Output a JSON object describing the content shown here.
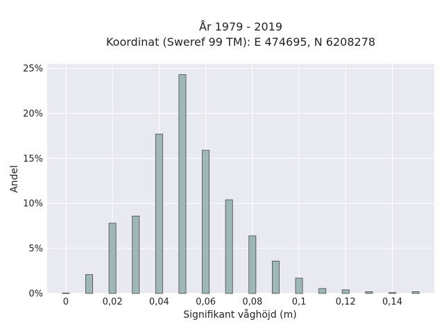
{
  "chart_data": {
    "type": "bar",
    "title": "År 1979 - 2019",
    "subtitle": "Koordinat (Sweref 99 TM): E 474695, N 6208278",
    "xlabel": "Signifikant våghöjd (m)",
    "ylabel": "Andel",
    "x": [
      0,
      0.01,
      0.02,
      0.03,
      0.04,
      0.05,
      0.06,
      0.07,
      0.08,
      0.09,
      0.1,
      0.11,
      0.12,
      0.13,
      0.14,
      0.15
    ],
    "values": [
      0.05,
      2.1,
      7.8,
      8.6,
      17.7,
      24.3,
      15.9,
      10.4,
      6.4,
      3.6,
      1.7,
      0.55,
      0.4,
      0.2,
      0.1,
      0.2
    ],
    "xlim": [
      -0.008,
      0.158
    ],
    "ylim": [
      0,
      25.5
    ],
    "x_ticks": [
      0,
      0.02,
      0.04,
      0.06,
      0.08,
      0.1,
      0.12,
      0.14
    ],
    "x_tick_labels": [
      "0",
      "0,02",
      "0,04",
      "0,06",
      "0,08",
      "0,1",
      "0,12",
      "0,14"
    ],
    "y_ticks": [
      0,
      5,
      10,
      15,
      20,
      25
    ],
    "y_tick_labels": [
      "0%",
      "5%",
      "10%",
      "15%",
      "20%",
      "25%"
    ],
    "bar_width": 0.003,
    "grid": true,
    "colors": {
      "plot_bg": "#e9e9f1",
      "grid": "#ffffff",
      "bar_fill": "#9fb7b7",
      "bar_stroke": "#444444"
    }
  }
}
